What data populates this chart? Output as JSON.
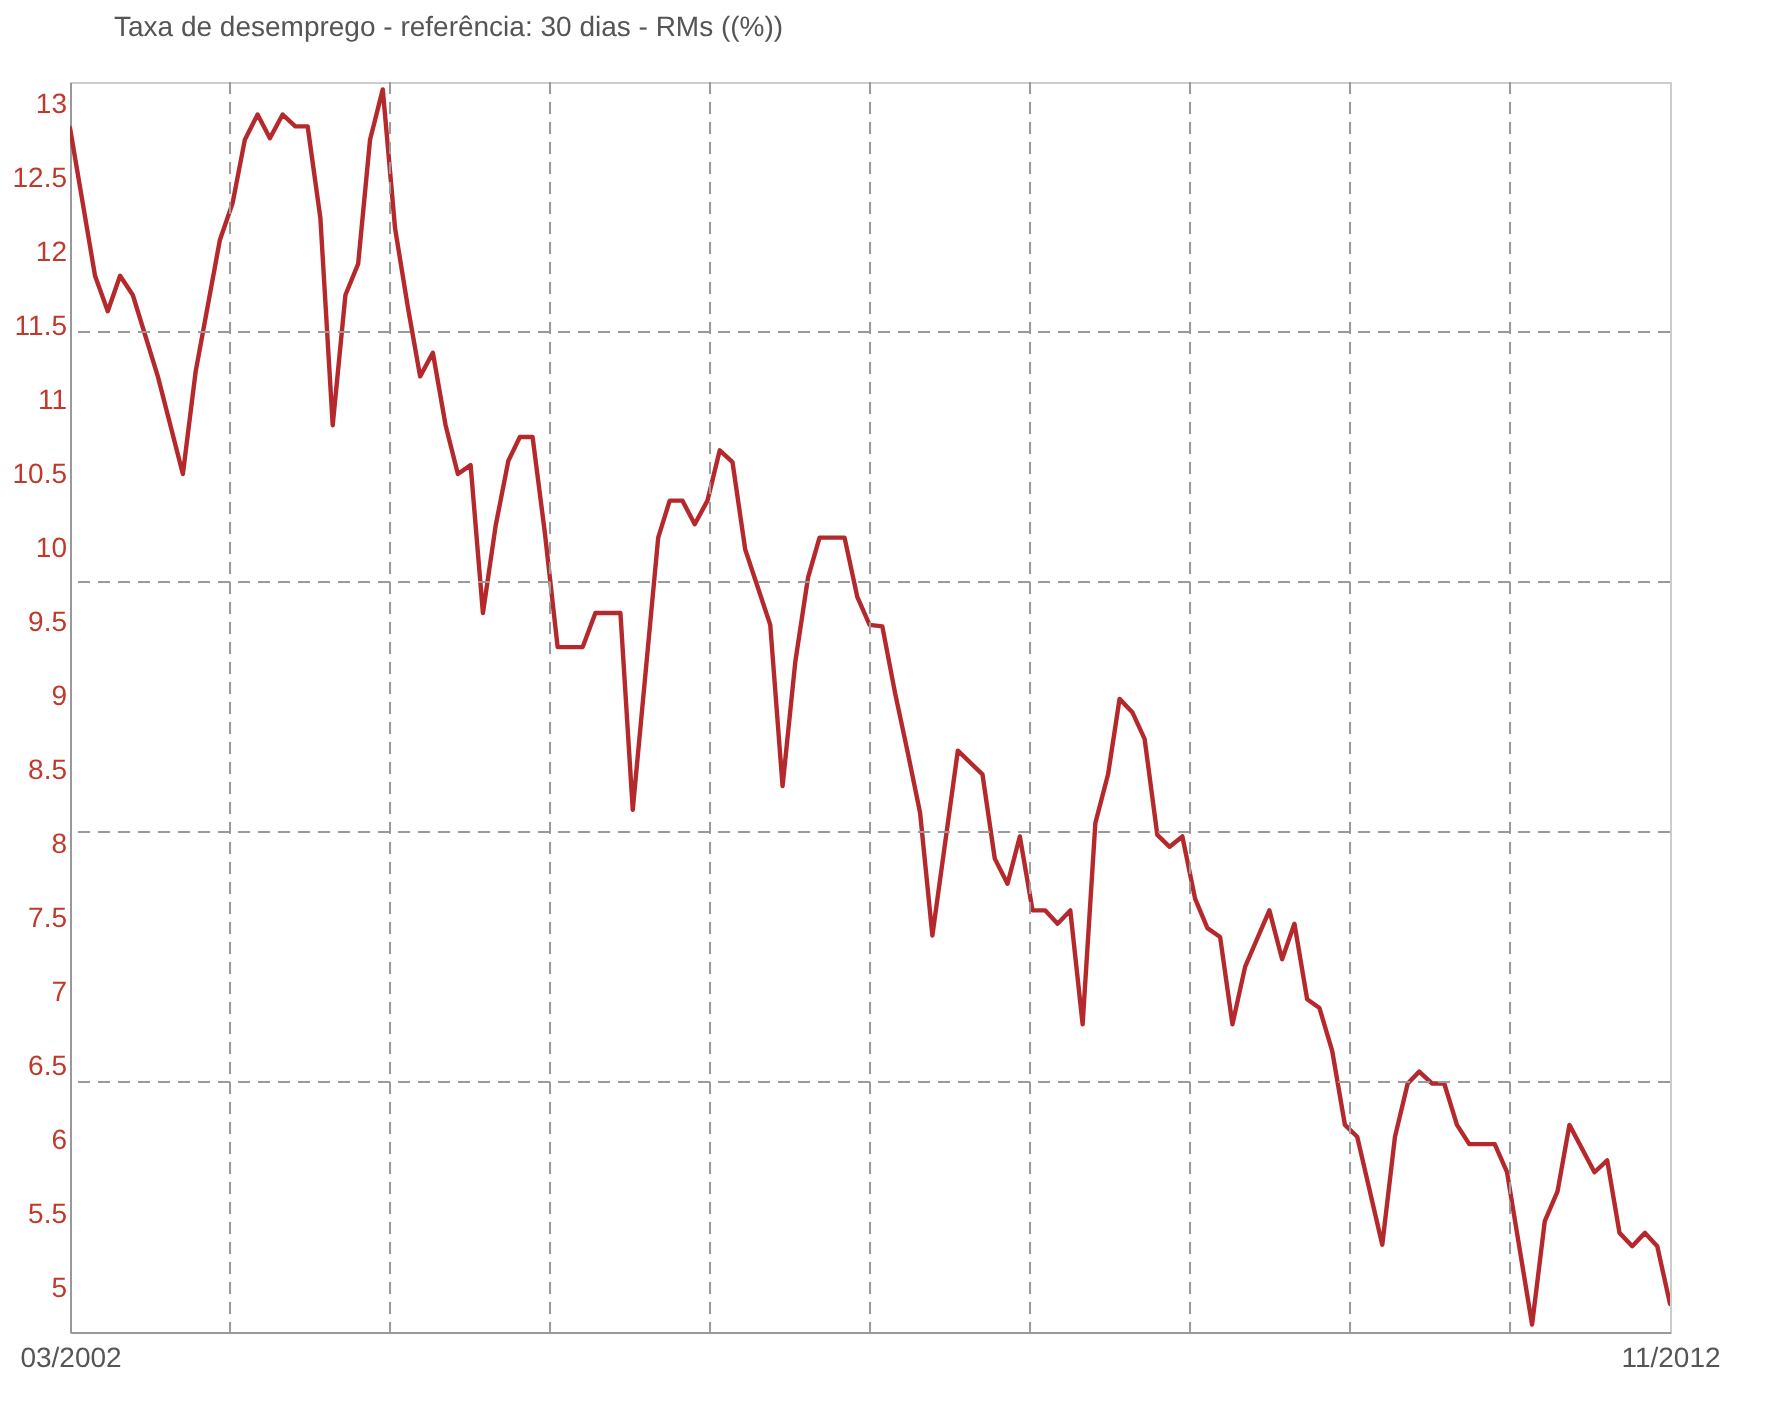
{
  "chart_data": {
    "type": "line",
    "x": [
      "2002-03",
      "2002-05",
      "2002-06",
      "2002-07",
      "2002-08",
      "2002-10",
      "2002-12",
      "2003-01",
      "2003-03",
      "2003-04",
      "2003-05",
      "2003-06",
      "2003-07",
      "2003-08",
      "2003-09",
      "2003-10",
      "2003-11",
      "2003-12",
      "2004-01",
      "2004-02",
      "2004-03",
      "2004-04",
      "2004-05",
      "2004-06",
      "2004-07",
      "2004-08",
      "2004-09",
      "2004-10",
      "2004-11",
      "2004-12",
      "2005-01",
      "2005-02",
      "2005-03",
      "2005-04",
      "2005-05",
      "2005-06",
      "2005-08",
      "2005-09",
      "2005-11",
      "2005-12",
      "2006-02",
      "2006-03",
      "2006-04",
      "2006-05",
      "2006-06",
      "2006-07",
      "2006-08",
      "2006-09",
      "2006-11",
      "2006-12",
      "2007-01",
      "2007-02",
      "2007-03",
      "2007-05",
      "2007-06",
      "2007-07",
      "2007-08",
      "2007-09",
      "2007-10",
      "2007-11",
      "2007-12",
      "2008-02",
      "2008-04",
      "2008-05",
      "2008-06",
      "2008-07",
      "2008-08",
      "2008-09",
      "2008-10",
      "2008-11",
      "2008-12",
      "2009-01",
      "2009-02",
      "2009-03",
      "2009-04",
      "2009-05",
      "2009-06",
      "2009-07",
      "2009-08",
      "2009-09",
      "2009-10",
      "2009-11",
      "2009-12",
      "2010-01",
      "2010-03",
      "2010-04",
      "2010-05",
      "2010-06",
      "2010-07",
      "2010-08",
      "2010-09",
      "2010-10",
      "2010-12",
      "2011-01",
      "2011-02",
      "2011-03",
      "2011-04",
      "2011-05",
      "2011-06",
      "2011-07",
      "2011-09",
      "2011-10",
      "2011-12",
      "2012-01",
      "2012-02",
      "2012-03",
      "2012-05",
      "2012-06",
      "2012-07",
      "2012-08",
      "2012-09",
      "2012-10",
      "2012-11"
    ],
    "series": [
      {
        "name": "Taxa de desemprego - referência: 30 dias - RMs ((%))",
        "color": "#b5292d",
        "values": [
          12.84,
          11.84,
          11.6,
          11.84,
          11.71,
          11.16,
          10.5,
          11.19,
          12.08,
          12.33,
          12.76,
          12.93,
          12.77,
          12.93,
          12.85,
          12.85,
          12.23,
          10.83,
          11.71,
          11.92,
          12.76,
          13.1,
          12.16,
          11.63,
          11.16,
          11.32,
          10.83,
          10.5,
          10.56,
          9.56,
          10.15,
          10.59,
          10.75,
          10.75,
          10.1,
          9.33,
          9.33,
          9.56,
          9.56,
          8.23,
          10.07,
          10.32,
          10.32,
          10.16,
          10.32,
          10.66,
          10.58,
          9.99,
          9.48,
          8.39,
          9.23,
          9.8,
          10.07,
          10.07,
          9.67,
          9.48,
          9.47,
          9.02,
          8.63,
          8.21,
          7.38,
          8.63,
          8.47,
          7.9,
          7.73,
          8.05,
          7.55,
          7.55,
          7.46,
          7.55,
          6.78,
          8.14,
          8.47,
          8.98,
          8.89,
          8.71,
          8.06,
          7.98,
          8.05,
          7.63,
          7.43,
          7.37,
          6.78,
          7.17,
          7.55,
          7.22,
          7.46,
          6.95,
          6.89,
          6.6,
          6.1,
          6.02,
          5.29,
          6.02,
          6.38,
          6.46,
          6.38,
          6.38,
          6.1,
          5.97,
          5.97,
          5.78,
          4.75,
          5.45,
          5.65,
          6.1,
          5.78,
          5.86,
          5.37,
          5.28,
          5.37,
          5.28,
          4.89
        ]
      }
    ],
    "xlim": [
      "2002-03",
      "2012-11"
    ],
    "xticks": [
      {
        "value": "2002-03",
        "label": "03/2002"
      },
      {
        "value": "2012-11",
        "label": "11/2012"
      }
    ],
    "ylim": [
      4.7,
      13.15
    ],
    "yticks": [
      5,
      5.5,
      6,
      6.5,
      7,
      7.5,
      8,
      8.5,
      9,
      9.5,
      10,
      10.5,
      11,
      11.5,
      12,
      12.5,
      13
    ],
    "grid": true,
    "legend": "top",
    "marker": "none",
    "line_style": "solid"
  }
}
